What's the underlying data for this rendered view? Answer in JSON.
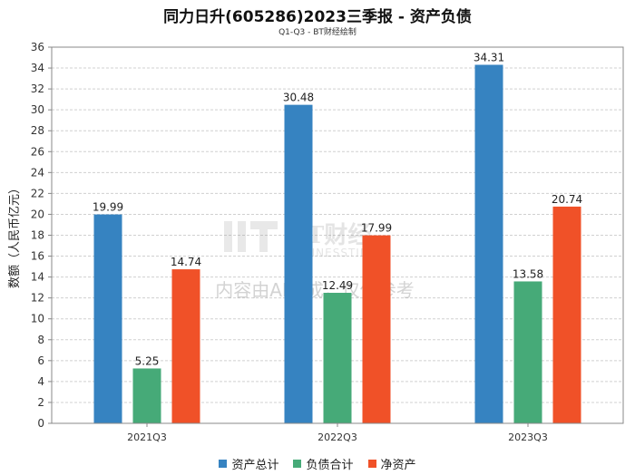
{
  "chart_data": {
    "type": "bar",
    "title": "同力日升(605286)2023三季报 - 资产负债",
    "subtitle": "Q1-Q3 - BT财经绘制",
    "ylabel": "数额（人民币亿元）",
    "xlabel": "",
    "ylim": [
      0,
      36
    ],
    "yticks": [
      0,
      2,
      4,
      6,
      8,
      10,
      12,
      14,
      16,
      18,
      20,
      22,
      24,
      26,
      28,
      30,
      32,
      34,
      36
    ],
    "grid": true,
    "legend_position": "bottom",
    "categories": [
      "2021Q3",
      "2022Q3",
      "2023Q3"
    ],
    "series": [
      {
        "name": "资产总计",
        "color": "#3683c1",
        "values": [
          19.99,
          30.48,
          34.31
        ],
        "labels": [
          "19.99",
          "30.48",
          "34.31"
        ]
      },
      {
        "name": "负债合计",
        "color": "#46aa78",
        "values": [
          5.25,
          12.49,
          13.58
        ],
        "labels": [
          "5.25",
          "12.49",
          "13.58"
        ]
      },
      {
        "name": "净资产",
        "color": "#f05128",
        "values": [
          14.74,
          17.99,
          20.74
        ],
        "labels": [
          "14.74",
          "17.99",
          "20.74"
        ]
      }
    ]
  },
  "watermark": {
    "logo_text": "BT财经",
    "logo_sub": "BUSINESSTIMES",
    "notice": "内容由AI生成，仅供参考"
  }
}
